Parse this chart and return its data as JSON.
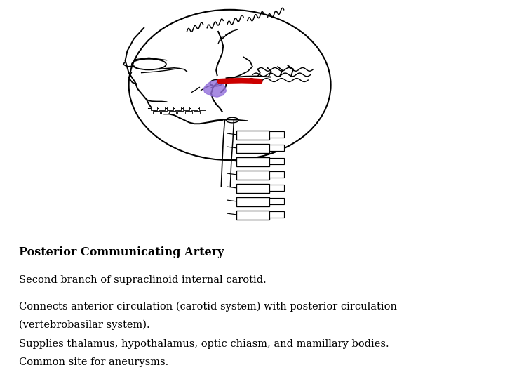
{
  "title": "Posterior Communicating Artery",
  "title_fontsize": 11.5,
  "body_lines": [
    "Second branch of supraclinoid internal carotid.",
    "Connects anterior circulation (carotid system) with posterior circulation",
    "(vertebrobasilar system).",
    "Supplies thalamus, hypothalamus, optic chiasm, and mamillary bodies.",
    "Common site for aneurysms."
  ],
  "body_fontsize": 10.5,
  "background_color": "#ffffff",
  "text_color": "#000000",
  "red_color": "#cc0000",
  "purple_color": "#9370DB",
  "skull_color": "#000000",
  "lw": 1.2
}
